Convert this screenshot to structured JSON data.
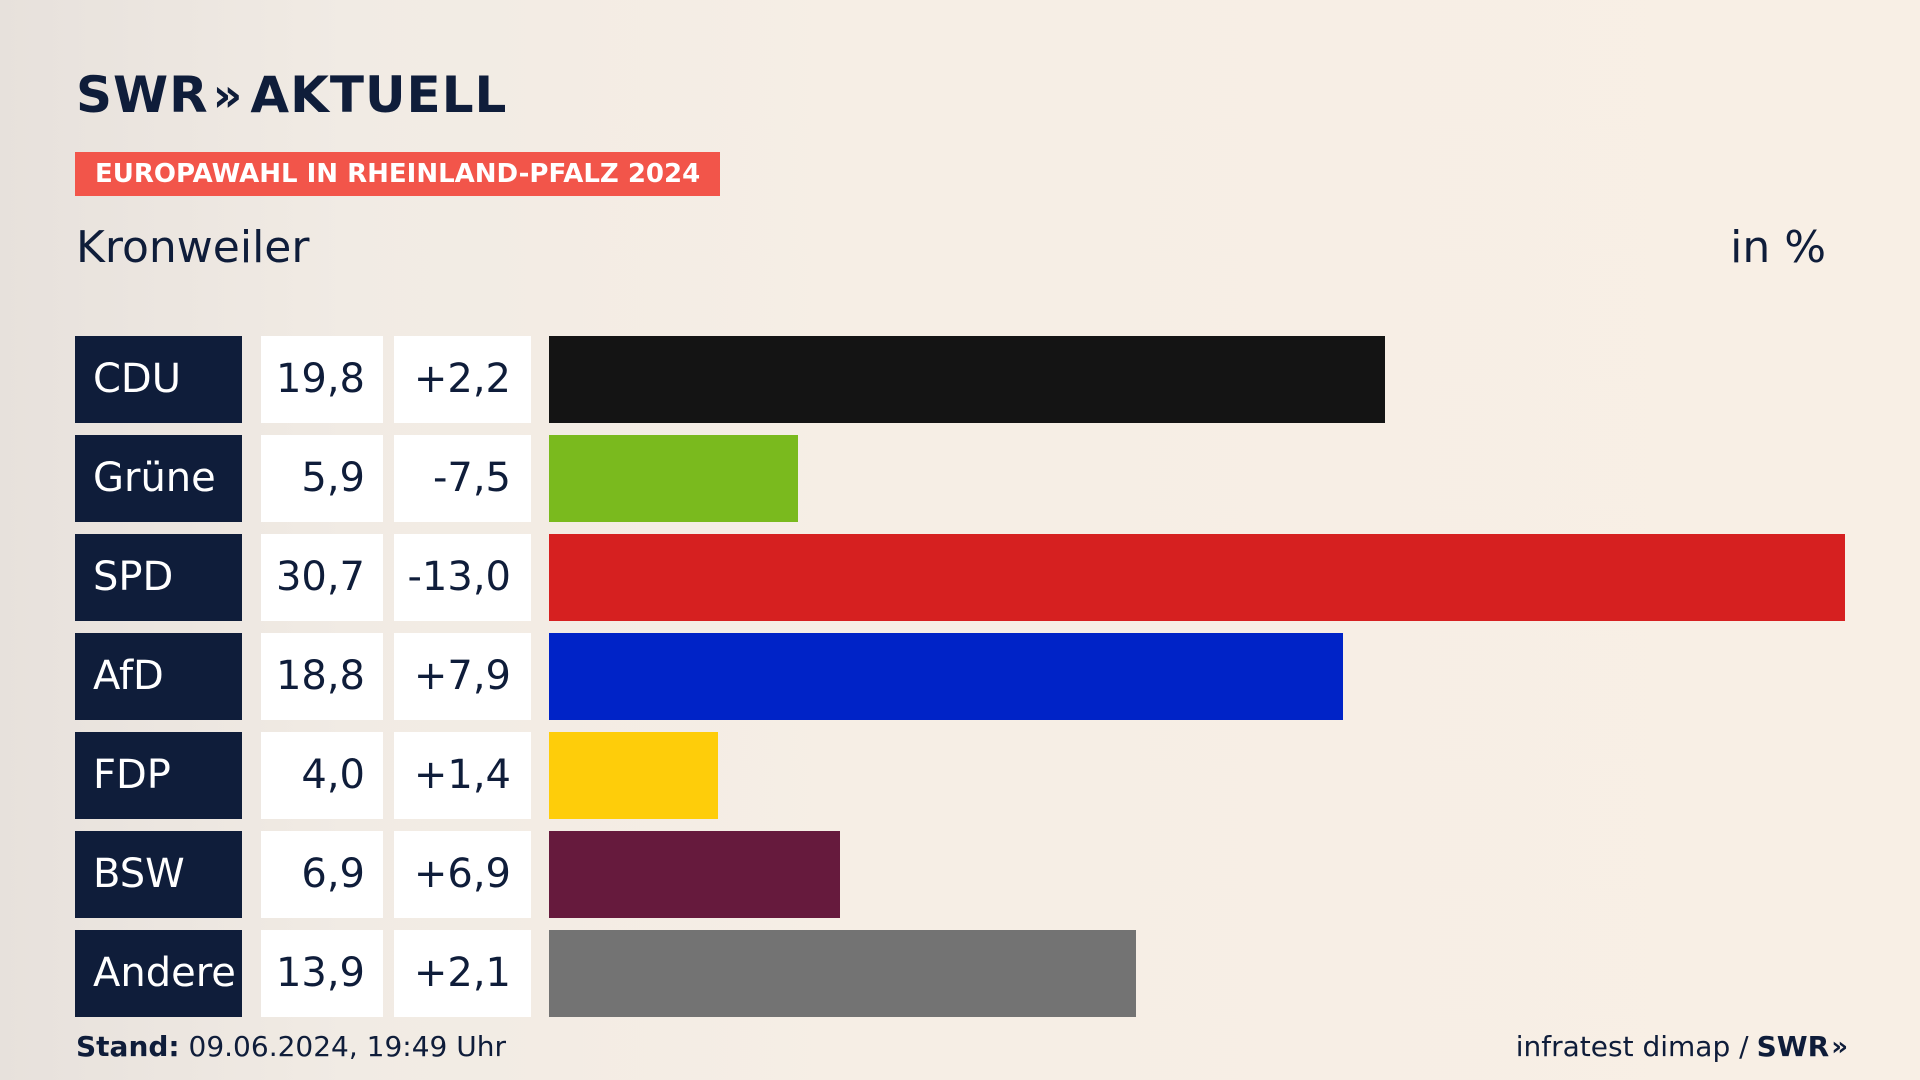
{
  "header": {
    "logo_text": "SWR",
    "logo_chevrons": "»",
    "logo_sub": "AKTUELL",
    "tag": "EUROPAWAHL IN RHEINLAND-PFALZ 2024",
    "place": "Kronweiler",
    "unit": "in %"
  },
  "footer": {
    "stand_label": "Stand:",
    "stand_value": "09.06.2024, 19:49 Uhr",
    "source": "infratest dimap /",
    "source_logo": "SWR",
    "source_chevrons": "»"
  },
  "chart_data": {
    "type": "bar",
    "orientation": "horizontal",
    "categories": [
      "CDU",
      "Grüne",
      "SPD",
      "AfD",
      "FDP",
      "BSW",
      "Andere"
    ],
    "values": [
      19.8,
      5.9,
      30.7,
      18.8,
      4.0,
      6.9,
      13.9
    ],
    "value_labels": [
      "19,8",
      "5,9",
      "30,7",
      "18,8",
      "4,0",
      "6,9",
      "13,9"
    ],
    "diff_labels": [
      "+2,2",
      "-7,5",
      "-13,0",
      "+7,9",
      "+1,4",
      "+6,9",
      "+2,1"
    ],
    "colors": [
      "#141414",
      "#7aba1e",
      "#d62020",
      "#0023c7",
      "#fecd0a",
      "#661a3d",
      "#737373"
    ],
    "xlim": [
      0,
      30.7
    ]
  }
}
